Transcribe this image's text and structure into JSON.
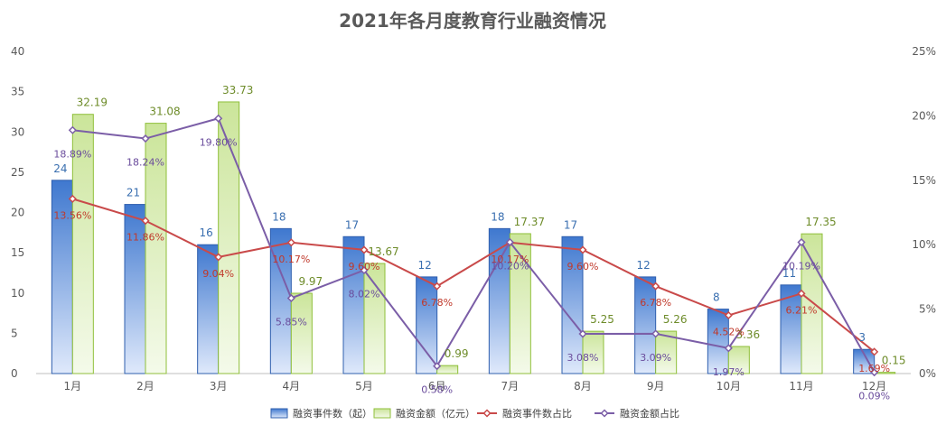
{
  "chart_data": {
    "type": "bar",
    "title": "2021年各月度教育行业融资情况",
    "categories": [
      "1月",
      "2月",
      "3月",
      "4月",
      "5月",
      "6月",
      "7月",
      "8月",
      "9月",
      "10月",
      "11月",
      "12月"
    ],
    "y_left": {
      "min": 0,
      "max": 40,
      "ticks": [
        "0",
        "5",
        "10",
        "15",
        "20",
        "25",
        "30",
        "35",
        "40"
      ]
    },
    "y_right": {
      "min": 0,
      "max": 25,
      "ticks": [
        "0%",
        "5%",
        "10%",
        "15%",
        "20%",
        "25%"
      ]
    },
    "grid": false,
    "legend_position": "bottom",
    "series": [
      {
        "name": "融资事件数（起）",
        "type": "bar",
        "axis": "left",
        "color": "#4a7fd0",
        "values": [
          24,
          21,
          16,
          18,
          17,
          12,
          18,
          17,
          12,
          8,
          11,
          3
        ],
        "labels": [
          "24",
          "21",
          "16",
          "18",
          "17",
          "12",
          "18",
          "17",
          "12",
          "8",
          "11",
          "3"
        ]
      },
      {
        "name": "融资金额（亿元）",
        "type": "bar",
        "axis": "left",
        "color": "#8fbf3a",
        "values": [
          32.19,
          31.08,
          33.73,
          9.97,
          13.67,
          0.99,
          17.37,
          5.25,
          5.26,
          3.36,
          17.35,
          0.15
        ],
        "labels": [
          "32.19",
          "31.08",
          "33.73",
          "9.97",
          "13.67",
          "0.99",
          "17.37",
          "5.25",
          "5.26",
          "3.36",
          "17.35",
          "0.15"
        ]
      },
      {
        "name": "融资事件数占比",
        "type": "line",
        "axis": "right",
        "color": "#c94a4a",
        "values": [
          13.56,
          11.86,
          9.04,
          10.17,
          9.6,
          6.78,
          10.17,
          9.6,
          6.78,
          4.52,
          6.21,
          1.69
        ],
        "labels": [
          "13.56%",
          "11.86%",
          "9.04%",
          "10.17%",
          "9.60%",
          "6.78%",
          "10.17%",
          "9.60%",
          "6.78%",
          "4.52%",
          "6.21%",
          "1.69%"
        ]
      },
      {
        "name": "融资金额占比",
        "type": "line",
        "axis": "right",
        "color": "#7b5ea7",
        "values": [
          18.89,
          18.24,
          19.8,
          5.85,
          8.02,
          0.58,
          10.2,
          3.08,
          3.09,
          1.97,
          10.19,
          0.09
        ],
        "labels": [
          "18.89%",
          "18.24%",
          "19.80%",
          "5.85%",
          "8.02%",
          "0.58%",
          "10.20%",
          "3.08%",
          "3.09%",
          "1.97%",
          "10.19%",
          "0.09%"
        ]
      }
    ]
  }
}
